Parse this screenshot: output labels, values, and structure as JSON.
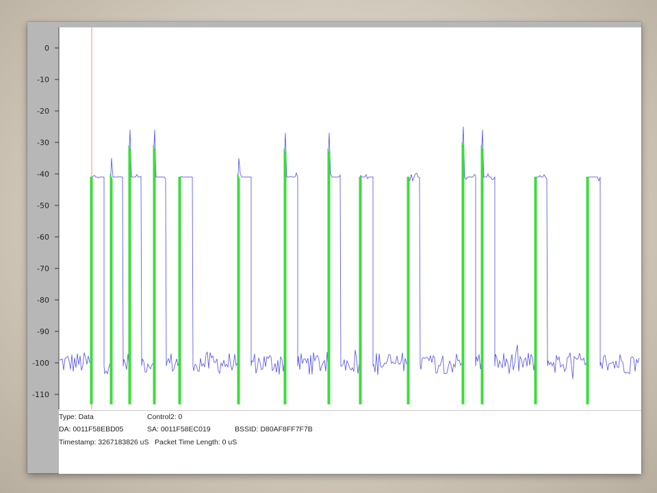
{
  "chart_data": {
    "type": "line",
    "yticks": [
      "0",
      "-10",
      "-20",
      "-30",
      "-40",
      "-50",
      "-60",
      "-70",
      "-80",
      "-90",
      "-100",
      "-110"
    ],
    "ylim": [
      -112,
      1
    ],
    "grid": false,
    "series": [
      {
        "color": "#5d5de8",
        "description": "signal trace"
      },
      {
        "color": "#3cdc3c",
        "description": "packet markers"
      }
    ],
    "cursor_color": "#ff8080"
  },
  "info": {
    "type": "Type: Data",
    "control2": "Control2: 0",
    "da": "DA: 0011F58EBD05",
    "sa": "SA: 0011F58EC019",
    "bssid": "BSSID: D80AF8FF7F7B",
    "timestamp": "Timestamp: 3267183826 uS",
    "packet_time": "Packet Time Length: 0 uS"
  }
}
